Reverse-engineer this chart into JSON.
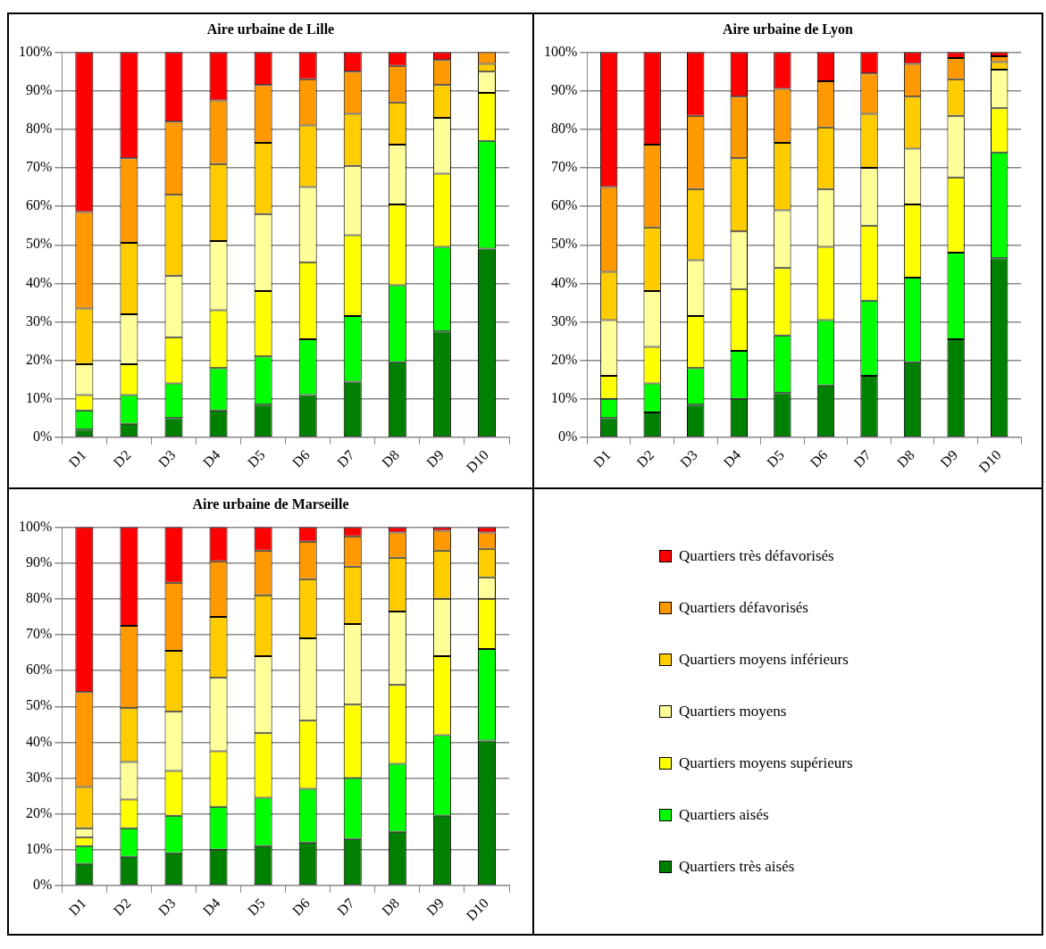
{
  "chart_data": [
    {
      "type": "bar",
      "title": "Aire urbaine de Lille",
      "categories": [
        "D1",
        "D2",
        "D3",
        "D4",
        "D5",
        "D6",
        "D7",
        "D8",
        "D9",
        "D10"
      ],
      "stacked": true,
      "ylim": [
        0,
        100
      ],
      "yticks": [
        {
          "value": 0,
          "label": "0%"
        },
        {
          "value": 10,
          "label": "10%"
        },
        {
          "value": 20,
          "label": "20%"
        },
        {
          "value": 30,
          "label": "30%"
        },
        {
          "value": 40,
          "label": "40%"
        },
        {
          "value": 50,
          "label": "50%"
        },
        {
          "value": 60,
          "label": "60%"
        },
        {
          "value": 70,
          "label": "70%"
        },
        {
          "value": 80,
          "label": "80%"
        },
        {
          "value": 90,
          "label": "90%"
        },
        {
          "value": 100,
          "label": "100%"
        }
      ],
      "grid": "y",
      "series": [
        {
          "color": "#008000",
          "values": [
            2,
            3.5,
            5,
            7,
            8.5,
            11,
            14.5,
            19.5,
            27.5,
            49
          ]
        },
        {
          "color": "#00ff00",
          "values": [
            5,
            7.5,
            9,
            11,
            12.5,
            14.5,
            17,
            20,
            22,
            28
          ]
        },
        {
          "color": "#ffff00",
          "values": [
            4,
            8,
            12,
            15,
            17,
            20,
            21,
            21,
            19,
            12.5
          ]
        },
        {
          "color": "#ffff99",
          "values": [
            8,
            13,
            16,
            18,
            20,
            19.5,
            18,
            15.5,
            14.5,
            5.5
          ]
        },
        {
          "color": "#ffcc00",
          "values": [
            14.5,
            18.5,
            21,
            20,
            18.5,
            16,
            13.5,
            11,
            8.5,
            2
          ]
        },
        {
          "color": "#ff9900",
          "values": [
            25,
            22,
            19,
            16.5,
            15,
            12,
            11,
            9.5,
            6.5,
            3
          ]
        },
        {
          "color": "#ff0000",
          "values": [
            41.5,
            27.5,
            18,
            12.5,
            8.5,
            7,
            5,
            3.5,
            2,
            null
          ]
        }
      ]
    },
    {
      "type": "bar",
      "title": "Aire urbaine de Lyon",
      "categories": [
        "D1",
        "D2",
        "D3",
        "D4",
        "D5",
        "D6",
        "D7",
        "D8",
        "D9",
        "D10"
      ],
      "stacked": true,
      "ylim": [
        0,
        100
      ],
      "yticks": [
        {
          "value": 0,
          "label": "0%"
        },
        {
          "value": 10,
          "label": "10%"
        },
        {
          "value": 20,
          "label": "20%"
        },
        {
          "value": 30,
          "label": "30%"
        },
        {
          "value": 40,
          "label": "40%"
        },
        {
          "value": 50,
          "label": "50%"
        },
        {
          "value": 60,
          "label": "60%"
        },
        {
          "value": 70,
          "label": "70%"
        },
        {
          "value": 80,
          "label": "80%"
        },
        {
          "value": 90,
          "label": "90%"
        },
        {
          "value": 100,
          "label": "100%"
        }
      ],
      "grid": "y",
      "series": [
        {
          "color": "#008000",
          "values": [
            5,
            6.5,
            8.5,
            10,
            11.5,
            13.5,
            16,
            19.5,
            25.5,
            46.5
          ]
        },
        {
          "color": "#00ff00",
          "values": [
            5,
            7.5,
            9.5,
            12.5,
            15,
            17,
            19.5,
            22,
            22.5,
            27.5
          ]
        },
        {
          "color": "#ffff00",
          "values": [
            6,
            9.5,
            13.5,
            16,
            17.5,
            19,
            19.5,
            19,
            19.5,
            11.5
          ]
        },
        {
          "color": "#ffff99",
          "values": [
            14.5,
            14.5,
            14.5,
            15,
            15,
            15,
            15,
            14.5,
            16,
            10
          ]
        },
        {
          "color": "#ffcc00",
          "values": [
            12.5,
            16.5,
            18.5,
            19,
            17.5,
            16,
            14,
            13.5,
            9.5,
            2
          ]
        },
        {
          "color": "#ff9900",
          "values": [
            22,
            21.5,
            19,
            16,
            14,
            12,
            10.5,
            8.5,
            5.5,
            1.5
          ]
        },
        {
          "color": "#ff0000",
          "values": [
            35,
            24,
            16.5,
            11.5,
            9.5,
            7.5,
            5.5,
            3,
            1.5,
            1
          ]
        }
      ]
    },
    {
      "type": "bar",
      "title": "Aire urbaine de Marseille",
      "categories": [
        "D1",
        "D2",
        "D3",
        "D4",
        "D5",
        "D6",
        "D7",
        "D8",
        "D9",
        "D10"
      ],
      "stacked": true,
      "ylim": [
        0,
        100
      ],
      "yticks": [
        {
          "value": 0,
          "label": "0%"
        },
        {
          "value": 10,
          "label": "10%"
        },
        {
          "value": 20,
          "label": "20%"
        },
        {
          "value": 30,
          "label": "30%"
        },
        {
          "value": 40,
          "label": "40%"
        },
        {
          "value": 50,
          "label": "50%"
        },
        {
          "value": 60,
          "label": "60%"
        },
        {
          "value": 70,
          "label": "70%"
        },
        {
          "value": 80,
          "label": "80%"
        },
        {
          "value": 90,
          "label": "90%"
        },
        {
          "value": 100,
          "label": "100%"
        }
      ],
      "grid": "y",
      "legend": "right",
      "series": [
        {
          "name": "Quartiers très aisés",
          "color": "#008000",
          "values": [
            6,
            8,
            9,
            10,
            11,
            12,
            13,
            15,
            19.5,
            40.5
          ]
        },
        {
          "name": "Quartiers aisés",
          "color": "#00ff00",
          "values": [
            5,
            8,
            10.5,
            12,
            13.5,
            15,
            17,
            19,
            22.5,
            25.5
          ]
        },
        {
          "name": "Quartiers moyens supérieurs",
          "color": "#ffff00",
          "values": [
            2.5,
            8,
            12.5,
            15.5,
            18,
            19,
            20.5,
            22,
            22,
            14
          ]
        },
        {
          "name": "Quartiers moyens",
          "color": "#ffff99",
          "values": [
            2.5,
            10.5,
            16.5,
            20.5,
            21.5,
            23,
            22.5,
            20.5,
            16,
            6
          ]
        },
        {
          "name": "Quartiers moyens inférieurs",
          "color": "#ffcc00",
          "values": [
            11.5,
            15,
            17,
            17,
            17,
            16.5,
            16,
            15,
            13.5,
            8
          ]
        },
        {
          "name": "Quartiers défavorisés",
          "color": "#ff9900",
          "values": [
            26.5,
            23,
            19,
            15.5,
            12.5,
            10.5,
            8.5,
            7,
            5.5,
            4.5
          ]
        },
        {
          "name": "Quartiers très défavorisés",
          "color": "#ff0000",
          "values": [
            46,
            27.5,
            15.5,
            9.5,
            6.5,
            4,
            2.5,
            1.5,
            1,
            1.5
          ]
        }
      ]
    }
  ]
}
